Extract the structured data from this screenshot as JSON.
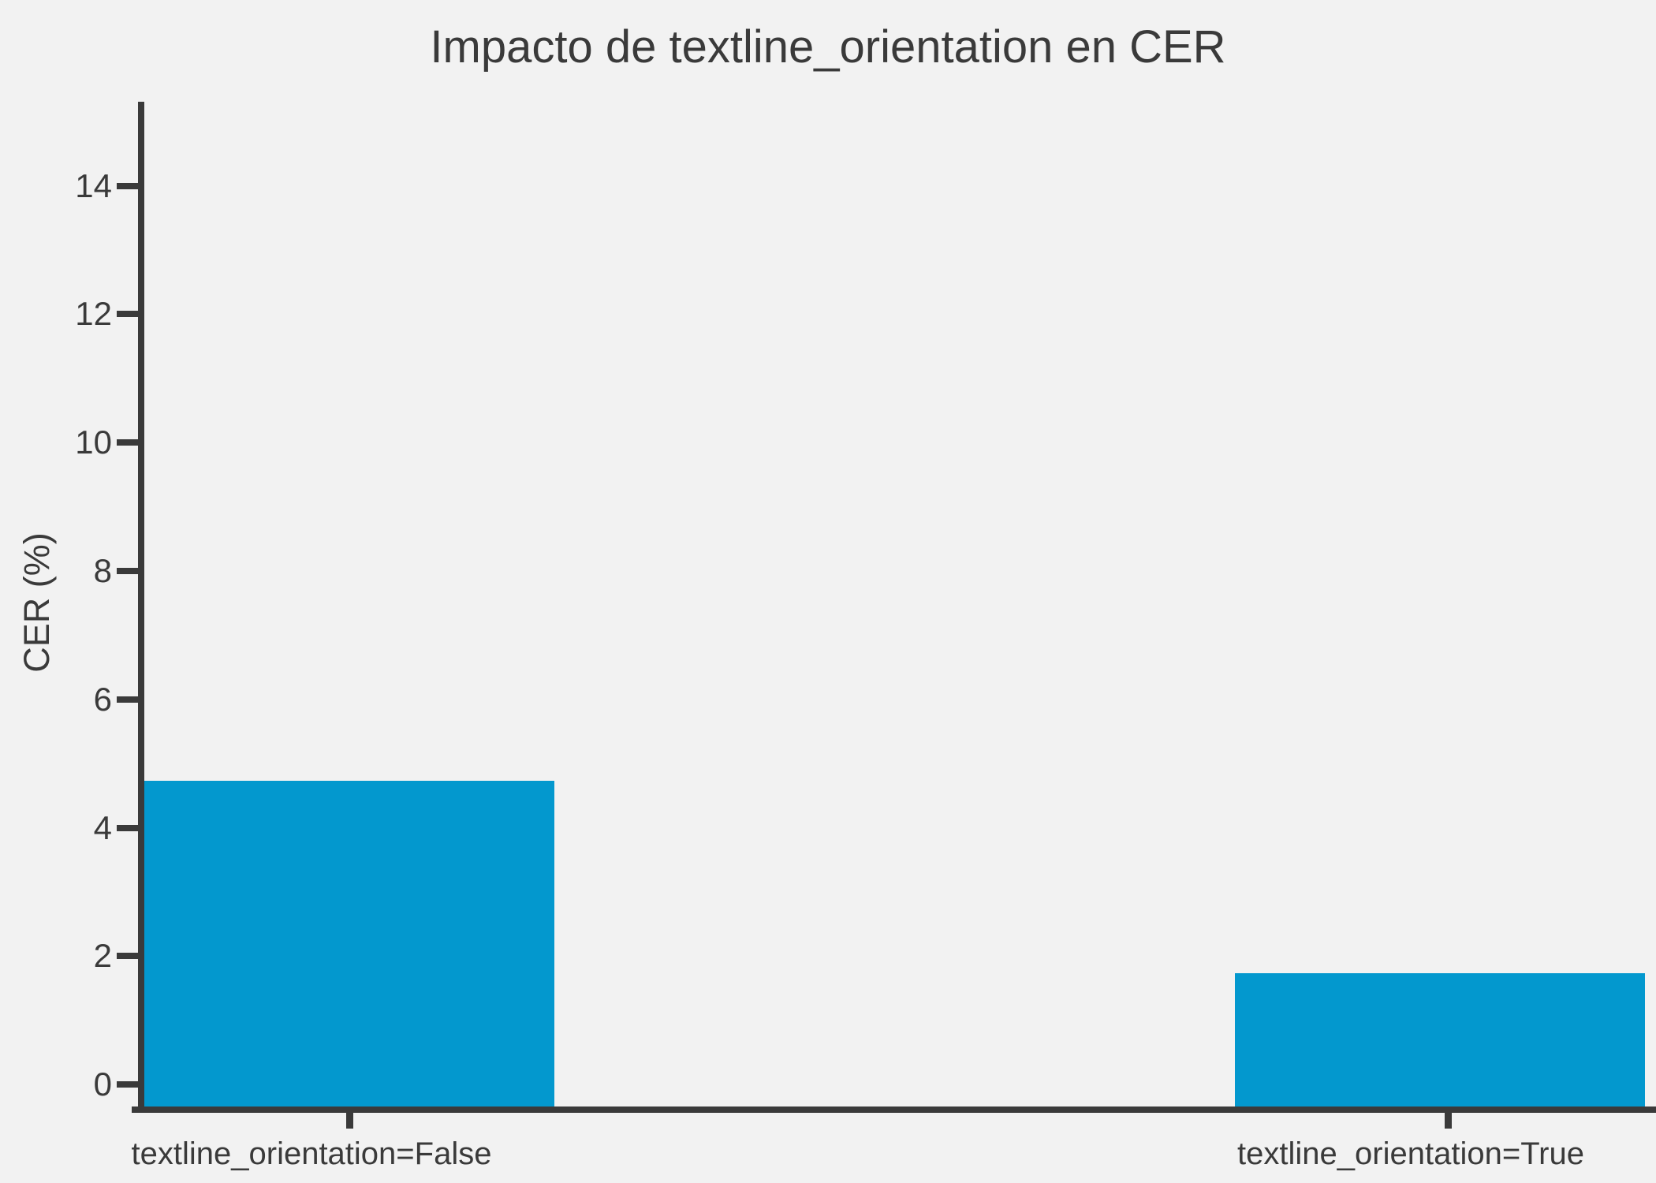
{
  "title": "Impacto de textline_orientation en CER",
  "colors": {
    "background": "#f2f2f2",
    "bar": "#0398ce",
    "axis": "#3a3a3a",
    "text": "#3a3a3a"
  },
  "chart_data": {
    "type": "bar",
    "title": "Impacto de textline_orientation en CER",
    "xlabel": "",
    "ylabel": "CER (%)",
    "categories": [
      "textline_orientation=False",
      "textline_orientation=True"
    ],
    "values": [
      4.73,
      1.74
    ],
    "yticks": [
      0,
      2,
      4,
      6,
      8,
      10,
      12,
      14
    ],
    "ylim": [
      -0.44,
      15.31
    ],
    "grid": false,
    "legend": false,
    "bars_extend_to_axis_bottom": true
  }
}
